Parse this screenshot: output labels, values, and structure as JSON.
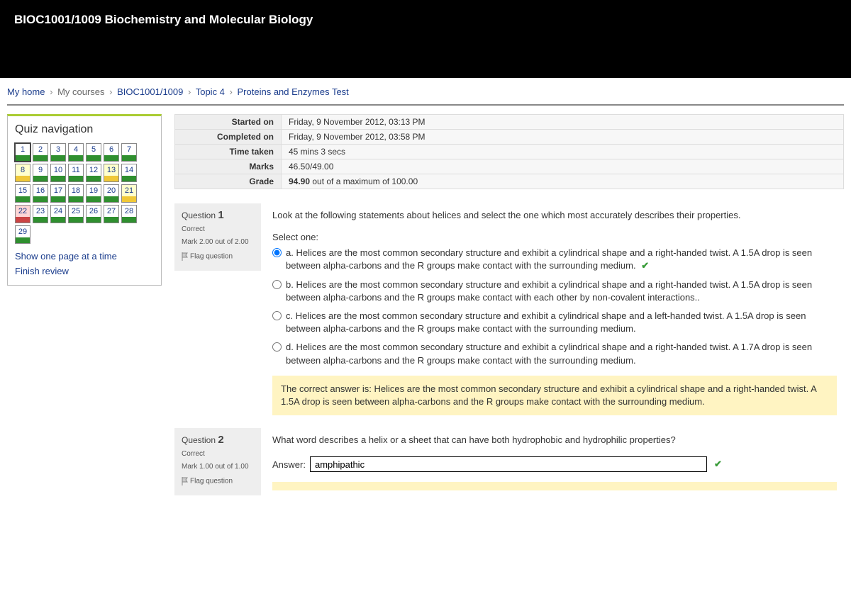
{
  "header": {
    "course_title": "BIOC1001/1009 Biochemistry and Molecular Biology"
  },
  "breadcrumb": {
    "home": "My home",
    "my_courses": "My courses",
    "course_code": "BIOC1001/1009",
    "topic": "Topic 4",
    "quiz": "Proteins and Enzymes Test",
    "sep": "›"
  },
  "nav": {
    "title": "Quiz navigation",
    "show_one_page": "Show one page at a time",
    "finish_review": "Finish review",
    "buttons": [
      {
        "n": "1",
        "state": "correct",
        "current": true
      },
      {
        "n": "2",
        "state": "correct"
      },
      {
        "n": "3",
        "state": "correct"
      },
      {
        "n": "4",
        "state": "correct"
      },
      {
        "n": "5",
        "state": "correct"
      },
      {
        "n": "6",
        "state": "correct"
      },
      {
        "n": "7",
        "state": "correct"
      },
      {
        "n": "8",
        "state": "partial"
      },
      {
        "n": "9",
        "state": "correct"
      },
      {
        "n": "10",
        "state": "correct"
      },
      {
        "n": "11",
        "state": "correct"
      },
      {
        "n": "12",
        "state": "correct"
      },
      {
        "n": "13",
        "state": "partial"
      },
      {
        "n": "14",
        "state": "correct"
      },
      {
        "n": "15",
        "state": "correct"
      },
      {
        "n": "16",
        "state": "correct"
      },
      {
        "n": "17",
        "state": "correct"
      },
      {
        "n": "18",
        "state": "correct"
      },
      {
        "n": "19",
        "state": "correct"
      },
      {
        "n": "20",
        "state": "correct"
      },
      {
        "n": "21",
        "state": "partial"
      },
      {
        "n": "22",
        "state": "flagged"
      },
      {
        "n": "23",
        "state": "correct"
      },
      {
        "n": "24",
        "state": "correct"
      },
      {
        "n": "25",
        "state": "correct"
      },
      {
        "n": "26",
        "state": "correct"
      },
      {
        "n": "27",
        "state": "correct"
      },
      {
        "n": "28",
        "state": "correct"
      },
      {
        "n": "29",
        "state": "correct"
      }
    ]
  },
  "summary": {
    "started_on_label": "Started on",
    "started_on": "Friday, 9 November 2012, 03:13 PM",
    "completed_on_label": "Completed on",
    "completed_on": "Friday, 9 November 2012, 03:58 PM",
    "time_taken_label": "Time taken",
    "time_taken": "45 mins 3 secs",
    "marks_label": "Marks",
    "marks": "46.50/49.00",
    "grade_label": "Grade",
    "grade_strong": "94.90",
    "grade_rest": " out of a maximum of 100.00"
  },
  "q1": {
    "label": "Question",
    "number": "1",
    "state": "Correct",
    "mark": "Mark 2.00 out of 2.00",
    "flag": "Flag question",
    "text": "Look at the following statements about helices and select the one which most accurately describes their properties.",
    "select_one": "Select one:",
    "options": {
      "a": "a. Helices are the most common secondary structure and exhibit a  cylindrical shape and a right-handed twist. A 1.5A drop is seen between alpha-carbons and the R groups make contact with the surrounding medium.",
      "b": "b. Helices are the most common secondary structure and exhibit a  cylindrical shape and a right-handed twist. A 1.5A drop is seen between alpha-carbons and the R groups make contact with each other by non-covalent interactions..",
      "c": "c. Helices are the most common secondary structure and exhibit a  cylindrical shape and a left-handed twist. A 1.5A drop is seen between alpha-carbons and the R groups make contact with the surrounding medium.",
      "d": "d. Helices are the most common secondary structure and exhibit a  cylindrical shape and a right-handed twist. A 1.7A drop is seen between alpha-carbons and the R groups make contact with the surrounding medium."
    },
    "feedback": "The correct answer is: Helices are the most common secondary structure and exhibit a  cylindrical shape and a right-handed twist. A 1.5A drop is seen between alpha-carbons and the R groups make contact with the surrounding medium."
  },
  "q2": {
    "label": "Question",
    "number": "2",
    "state": "Correct",
    "mark": "Mark 1.00 out of 1.00",
    "flag": "Flag question",
    "text": "What word describes a helix or a sheet that can have both hydrophobic and hydrophilic properties?",
    "answer_label": "Answer:",
    "answer_value": "amphipathic"
  },
  "colors": {
    "link": "#1a3c8c",
    "accent_bar": "#aacc33",
    "correct_bar": "#2f8f2f",
    "partial_bg": "#ffffcc",
    "partial_bar": "#f0c838",
    "flagged_bg": "#ffd6d6",
    "flagged_bar": "#cc4444",
    "feedback_bg": "#fff4c2",
    "check": "#3a9c3a"
  }
}
